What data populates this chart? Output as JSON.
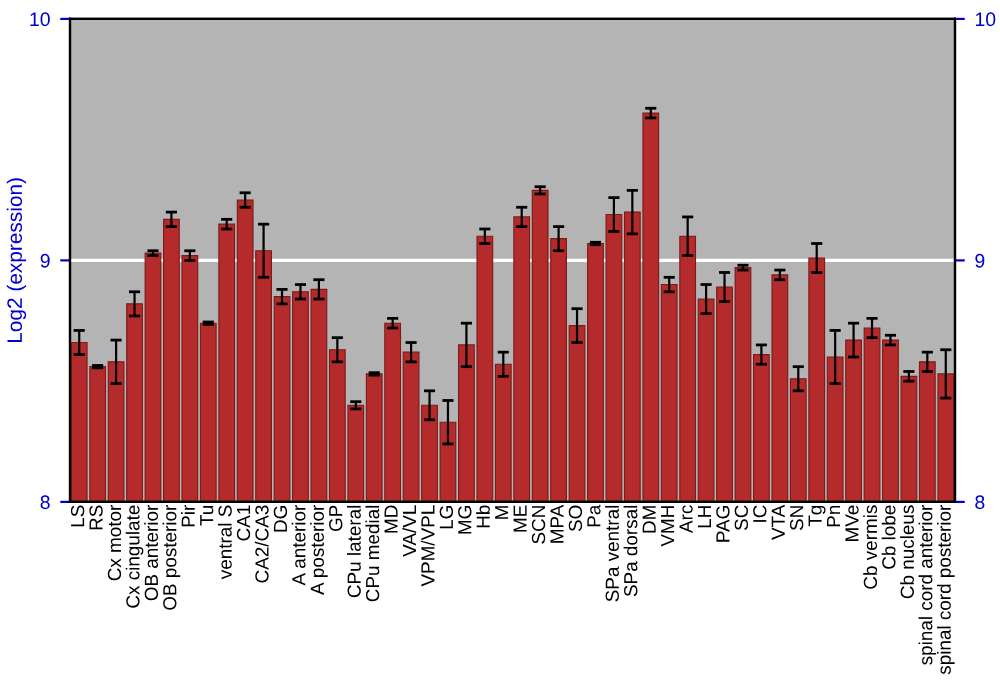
{
  "chart_data": {
    "type": "bar",
    "ylabel": "Log2 (expression)",
    "categories": [
      "LS",
      "RS",
      "Cx motor",
      "Cx cingulate",
      "OB anterior",
      "OB posterior",
      "Pir",
      "Tu",
      "ventral S",
      "CA1",
      "CA2/CA3",
      "DG",
      "A anterior",
      "A posterior",
      "GP",
      "CPu lateral",
      "CPu medial",
      "MD",
      "VA/VL",
      "VPM/VPL",
      "LG",
      "MG",
      "Hb",
      "M",
      "ME",
      "SCN",
      "MPA",
      "SO",
      "Pa",
      "SPa ventral",
      "SPa dorsal",
      "DM",
      "VMH",
      "Arc",
      "LH",
      "PAG",
      "SC",
      "IC",
      "VTA",
      "SN",
      "Tg",
      "Pn",
      "MVe",
      "Cb vermis",
      "Cb lobe",
      "Cb nucleus",
      "spinal cord anterior",
      "spinal cord posterior"
    ],
    "values": [
      8.66,
      8.56,
      8.58,
      8.82,
      9.03,
      9.17,
      9.02,
      8.74,
      9.15,
      9.25,
      9.04,
      8.85,
      8.87,
      8.88,
      8.63,
      8.4,
      8.53,
      8.74,
      8.62,
      8.4,
      8.33,
      8.65,
      9.1,
      8.57,
      9.18,
      9.29,
      9.09,
      8.73,
      9.07,
      9.19,
      9.2,
      9.61,
      8.9,
      9.1,
      8.84,
      8.89,
      8.97,
      8.61,
      8.94,
      8.51,
      9.01,
      8.6,
      8.67,
      8.72,
      8.67,
      8.52,
      8.58,
      8.53
    ],
    "errors": [
      0.05,
      0.005,
      0.09,
      0.05,
      0.01,
      0.03,
      0.02,
      0.005,
      0.02,
      0.03,
      0.11,
      0.03,
      0.03,
      0.04,
      0.05,
      0.015,
      0.005,
      0.02,
      0.04,
      0.06,
      0.09,
      0.09,
      0.03,
      0.05,
      0.04,
      0.015,
      0.05,
      0.07,
      0.005,
      0.07,
      0.09,
      0.02,
      0.03,
      0.08,
      0.06,
      0.06,
      0.01,
      0.04,
      0.02,
      0.05,
      0.06,
      0.11,
      0.07,
      0.04,
      0.02,
      0.02,
      0.04,
      0.1
    ],
    "color": "#b52a2a",
    "ylim": [
      8,
      10
    ],
    "yticks": [
      8,
      9,
      10
    ],
    "y2lim": [
      8,
      10
    ],
    "y2ticks": [
      8,
      9,
      10
    ],
    "ref_lines": [
      {
        "axis": "y",
        "value": 9,
        "color": "#ffffff"
      }
    ]
  }
}
